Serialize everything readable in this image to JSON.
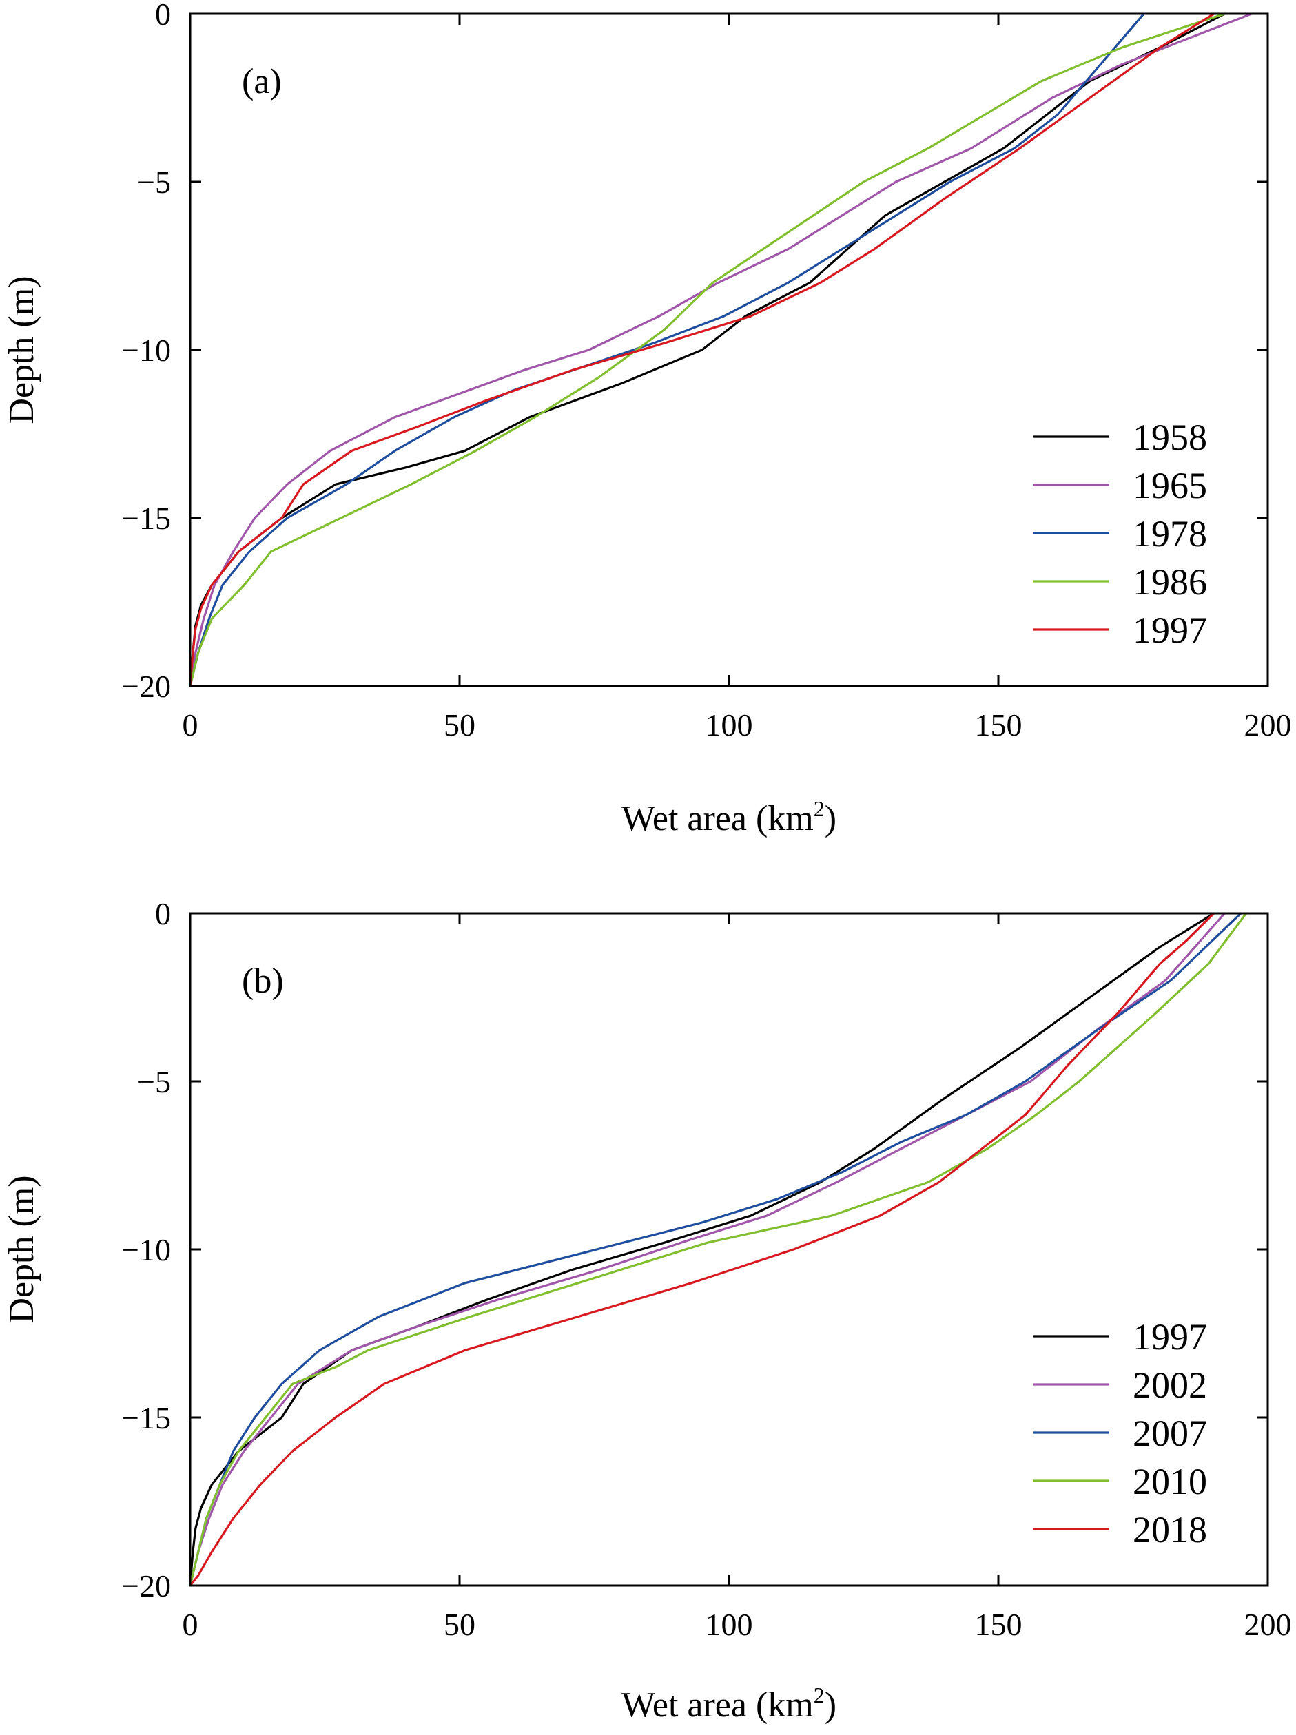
{
  "chart_data": [
    {
      "type": "line",
      "panel_label": "(a)",
      "xlabel": "Wet area (km",
      "xlabel_sup": "2",
      "xlabel_end": ")",
      "ylabel": "Depth (m)",
      "xlim": [
        0,
        200
      ],
      "ylim": [
        -20,
        0
      ],
      "xticks": [
        0,
        50,
        100,
        150,
        200
      ],
      "xtick_labels": [
        "0",
        "50",
        "100",
        "150",
        "200"
      ],
      "yticks": [
        0,
        -5,
        -10,
        -15,
        -20
      ],
      "ytick_labels": [
        "0",
        "−5",
        "−10",
        "−15",
        "−20"
      ],
      "grid": false,
      "legend_position": "bottom-right",
      "series": [
        {
          "name": "1958",
          "color": "#000000",
          "x": [
            0,
            0.5,
            1,
            2,
            4,
            9,
            17,
            27,
            40,
            51,
            63,
            80,
            95,
            103,
            115,
            129,
            151,
            167,
            180,
            192
          ],
          "y": [
            -20,
            -19,
            -18.2,
            -17.6,
            -17,
            -16,
            -15,
            -14,
            -13.5,
            -13,
            -12,
            -11,
            -10,
            -9,
            -8,
            -6,
            -4,
            -2,
            -1,
            0
          ]
        },
        {
          "name": "1965",
          "color": "#a157a9",
          "x": [
            0,
            1,
            2.5,
            4.5,
            8,
            12,
            18,
            26,
            38,
            50,
            62,
            74,
            87,
            98,
            111,
            131,
            145,
            160,
            173,
            197
          ],
          "y": [
            -20,
            -19,
            -18,
            -17,
            -16,
            -15,
            -14,
            -13,
            -12,
            -11.3,
            -10.6,
            -10,
            -9,
            -8,
            -7,
            -5,
            -4,
            -2.5,
            -1.5,
            0
          ]
        },
        {
          "name": "1978",
          "color": "#1f4e9e",
          "x": [
            0,
            1.5,
            3.5,
            6,
            11,
            18,
            29,
            38,
            49,
            60,
            73,
            86,
            99,
            111,
            123,
            133,
            141,
            153,
            161,
            177
          ],
          "y": [
            -20,
            -19,
            -18,
            -17,
            -16,
            -15,
            -14,
            -13,
            -12,
            -11.2,
            -10.5,
            -9.8,
            -9,
            -8,
            -6.8,
            -5.8,
            -5,
            -4,
            -3,
            0
          ]
        },
        {
          "name": "1986",
          "color": "#82bf30",
          "x": [
            0,
            1.5,
            4,
            7,
            10,
            15,
            41,
            53,
            64,
            76,
            88,
            97,
            111,
            125,
            137,
            158,
            173,
            192
          ],
          "y": [
            -20,
            -19,
            -18,
            -17.5,
            -17,
            -16,
            -14,
            -13,
            -12,
            -10.8,
            -9.4,
            -8,
            -6.5,
            -5,
            -4,
            -2,
            -1,
            0
          ]
        },
        {
          "name": "1997",
          "color": "#d71920",
          "x": [
            0,
            0.5,
            1,
            2,
            4,
            9,
            17,
            21,
            30,
            42,
            55,
            71,
            88,
            104,
            117,
            127,
            140,
            154,
            167,
            180,
            190
          ],
          "y": [
            -20,
            -19,
            -18.3,
            -17.7,
            -17,
            -16,
            -15,
            -14,
            -13,
            -12.3,
            -11.5,
            -10.6,
            -9.8,
            -9,
            -8,
            -7,
            -5.5,
            -4,
            -2.5,
            -1,
            0
          ]
        }
      ]
    },
    {
      "type": "line",
      "panel_label": "(b)",
      "xlabel": "Wet area (km",
      "xlabel_sup": "2",
      "xlabel_end": ")",
      "ylabel": "Depth (m)",
      "xlim": [
        0,
        200
      ],
      "ylim": [
        -20,
        0
      ],
      "xticks": [
        0,
        50,
        100,
        150,
        200
      ],
      "xtick_labels": [
        "0",
        "50",
        "100",
        "150",
        "200"
      ],
      "yticks": [
        0,
        -5,
        -10,
        -15,
        -20
      ],
      "ytick_labels": [
        "0",
        "−5",
        "−10",
        "−15",
        "−20"
      ],
      "grid": false,
      "legend_position": "bottom-right",
      "series": [
        {
          "name": "1997",
          "color": "#000000",
          "x": [
            0,
            0.5,
            1,
            2,
            4,
            9,
            17,
            21,
            30,
            42,
            55,
            71,
            88,
            104,
            117,
            127,
            140,
            154,
            167,
            180,
            190
          ],
          "y": [
            -20,
            -19,
            -18.3,
            -17.7,
            -17,
            -16,
            -15,
            -14,
            -13,
            -12.3,
            -11.5,
            -10.6,
            -9.8,
            -9,
            -8,
            -7,
            -5.5,
            -4,
            -2.5,
            -1,
            0
          ]
        },
        {
          "name": "2002",
          "color": "#a157a9",
          "x": [
            0,
            1.5,
            3.5,
            6,
            10,
            15,
            20,
            30,
            42,
            57,
            76,
            93,
            107,
            120,
            132,
            144,
            156,
            168,
            181,
            192
          ],
          "y": [
            -20,
            -19,
            -18,
            -17,
            -16,
            -15,
            -14,
            -13,
            -12.3,
            -11.5,
            -10.6,
            -9.7,
            -9,
            -8,
            -7,
            -6,
            -5,
            -3.5,
            -2,
            0
          ]
        },
        {
          "name": "2007",
          "color": "#1f4e9e",
          "x": [
            0,
            1.5,
            3,
            5.5,
            8,
            12,
            17,
            24,
            35,
            51,
            73,
            95,
            109,
            121,
            132,
            144,
            155,
            169,
            182,
            195
          ],
          "y": [
            -20,
            -19,
            -18,
            -17,
            -16,
            -15,
            -14,
            -13,
            -12,
            -11,
            -10.1,
            -9.2,
            -8.5,
            -7.7,
            -6.8,
            -6,
            -5,
            -3.4,
            -2,
            0
          ]
        },
        {
          "name": "2010",
          "color": "#82bf30",
          "x": [
            0,
            1.5,
            3,
            5.5,
            9,
            14,
            19,
            27,
            33,
            52,
            72,
            96,
            119,
            137,
            148,
            157,
            165,
            172,
            179,
            189,
            196
          ],
          "y": [
            -20,
            -19,
            -18,
            -17,
            -16,
            -15,
            -14,
            -13.5,
            -13,
            -12,
            -11,
            -9.8,
            -9,
            -8,
            -7,
            -6,
            -5,
            -4,
            -3,
            -1.5,
            0
          ]
        },
        {
          "name": "2018",
          "color": "#d71920",
          "x": [
            0,
            1.5,
            4,
            8,
            13,
            19,
            27,
            36,
            51,
            72,
            93,
            112,
            128,
            139,
            147,
            155,
            163,
            172,
            180,
            185,
            190
          ],
          "y": [
            -20,
            -19.7,
            -19,
            -18,
            -17,
            -16,
            -15,
            -14,
            -13,
            -12,
            -11,
            -10,
            -9,
            -8,
            -7,
            -6,
            -4.5,
            -3,
            -1.5,
            -0.8,
            0
          ]
        }
      ]
    }
  ]
}
